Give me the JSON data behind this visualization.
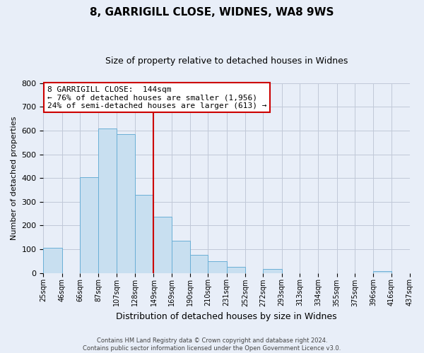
{
  "title": "8, GARRIGILL CLOSE, WIDNES, WA8 9WS",
  "subtitle": "Size of property relative to detached houses in Widnes",
  "xlabel": "Distribution of detached houses by size in Widnes",
  "ylabel": "Number of detached properties",
  "bar_edges": [
    25,
    46,
    66,
    87,
    107,
    128,
    149,
    169,
    190,
    210,
    231,
    252,
    272,
    293,
    313,
    334,
    355,
    375,
    396,
    416,
    437
  ],
  "bar_heights": [
    105,
    0,
    403,
    610,
    585,
    330,
    236,
    136,
    75,
    48,
    24,
    0,
    15,
    0,
    0,
    0,
    0,
    0,
    8,
    0,
    0
  ],
  "bar_color": "#c8dff0",
  "bar_edgecolor": "#6aafd6",
  "property_line_x": 149,
  "property_line_color": "#cc0000",
  "ylim": [
    0,
    800
  ],
  "yticks": [
    0,
    100,
    200,
    300,
    400,
    500,
    600,
    700,
    800
  ],
  "xtick_labels": [
    "25sqm",
    "46sqm",
    "66sqm",
    "87sqm",
    "107sqm",
    "128sqm",
    "149sqm",
    "169sqm",
    "190sqm",
    "210sqm",
    "231sqm",
    "252sqm",
    "272sqm",
    "293sqm",
    "313sqm",
    "334sqm",
    "355sqm",
    "375sqm",
    "396sqm",
    "416sqm",
    "437sqm"
  ],
  "annotation_title": "8 GARRIGILL CLOSE:  144sqm",
  "annotation_line1": "← 76% of detached houses are smaller (1,956)",
  "annotation_line2": "24% of semi-detached houses are larger (613) →",
  "footer_line1": "Contains HM Land Registry data © Crown copyright and database right 2024.",
  "footer_line2": "Contains public sector information licensed under the Open Government Licence v3.0.",
  "bg_color": "#e8eef8",
  "plot_bg_color": "#e8eef8",
  "grid_color": "#c0c8d8",
  "title_fontsize": 11,
  "subtitle_fontsize": 9,
  "xlabel_fontsize": 9,
  "ylabel_fontsize": 8,
  "xtick_fontsize": 7,
  "ytick_fontsize": 8,
  "annotation_fontsize": 8,
  "footer_fontsize": 6
}
